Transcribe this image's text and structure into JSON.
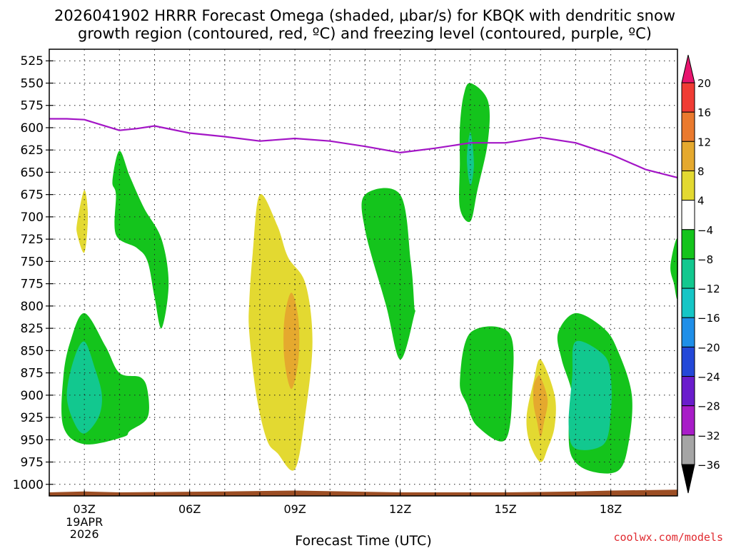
{
  "chart_data": {
    "type": "time-height cross section (filled contour)",
    "title_line1": "2026041902 HRRR Forecast Omega (shaded, μbar/s) for KBQK with dendritic snow",
    "title_line2": "growth region (contoured, red, ºC) and freezing level (contoured, purple, ºC)",
    "xlabel": "Forecast Time (UTC)",
    "credit": "coolwx.com/models",
    "x_ticks": [
      {
        "hour": 3,
        "label": "03Z",
        "sub1": "19APR",
        "sub2": "2026"
      },
      {
        "hour": 6,
        "label": "06Z"
      },
      {
        "hour": 9,
        "label": "09Z"
      },
      {
        "hour": 12,
        "label": "12Z"
      },
      {
        "hour": 15,
        "label": "15Z"
      },
      {
        "hour": 18,
        "label": "18Z"
      }
    ],
    "x_range_hours": [
      2,
      19.9
    ],
    "y_ticks": [
      525,
      550,
      575,
      600,
      625,
      650,
      675,
      700,
      725,
      750,
      775,
      800,
      825,
      850,
      875,
      900,
      925,
      950,
      975,
      1000
    ],
    "y_range_mb": [
      512,
      1013
    ],
    "colorbar": {
      "labels": [
        "20",
        "16",
        "12",
        "8",
        "4",
        "−4",
        "−8",
        "−12",
        "−16",
        "−20",
        "−24",
        "−28",
        "−32",
        "−36"
      ],
      "bins": [
        {
          "from": 20,
          "to": 24,
          "color": "#e8156e"
        },
        {
          "from": 16,
          "to": 20,
          "color": "#f03c34"
        },
        {
          "from": 12,
          "to": 16,
          "color": "#ea7a2e"
        },
        {
          "from": 8,
          "to": 12,
          "color": "#e5a92e"
        },
        {
          "from": 4,
          "to": 8,
          "color": "#e3d931"
        },
        {
          "from": -4,
          "to": 4,
          "color": "#ffffff"
        },
        {
          "from": -8,
          "to": -4,
          "color": "#14c41c"
        },
        {
          "from": -12,
          "to": -8,
          "color": "#12c88f"
        },
        {
          "from": -16,
          "to": -12,
          "color": "#15c6c6"
        },
        {
          "from": -20,
          "to": -16,
          "color": "#1f8fe8"
        },
        {
          "from": -24,
          "to": -20,
          "color": "#2448d8"
        },
        {
          "from": -28,
          "to": -24,
          "color": "#6a1ccc"
        },
        {
          "from": -32,
          "to": -28,
          "color": "#a81cc8"
        },
        {
          "from": -36,
          "to": -32,
          "color": "#a5a5a5"
        },
        {
          "from": -40,
          "to": -36,
          "color": "#000000"
        }
      ]
    },
    "freezing_level": {
      "label": "Freezing level (0 ºC)",
      "color": "#a315c6",
      "hours": [
        2.0,
        2.5,
        3.0,
        3.5,
        4.0,
        4.5,
        5.0,
        5.5,
        6.0,
        7.0,
        8.0,
        9.0,
        10.0,
        11.0,
        12.0,
        13.0,
        14.0,
        15.0,
        16.0,
        17.0,
        18.0,
        19.0,
        19.9
      ],
      "mb": [
        590,
        590,
        591,
        597,
        603,
        601,
        598,
        602,
        606,
        610,
        615,
        612,
        615,
        621,
        628,
        623,
        617,
        617,
        611,
        617,
        630,
        647,
        656
      ]
    },
    "shaded_regions": [
      {
        "name": "ascent-0330z-upper",
        "value_bin": -6,
        "hours": [
          4.0,
          4.3,
          4.7,
          5.2,
          5.4,
          5.2,
          5.0,
          4.8,
          4.5,
          3.9,
          3.9,
          3.8
        ],
        "mb": [
          626,
          655,
          690,
          725,
          775,
          825,
          790,
          750,
          735,
          720,
          675,
          660
        ]
      },
      {
        "name": "ascent-03z-low",
        "value_bin": -6,
        "hours": [
          3.0,
          3.6,
          4.0,
          4.6,
          4.8,
          4.8,
          4.3,
          4.1,
          3.0,
          2.4,
          2.4,
          2.6
        ],
        "mb": [
          808,
          845,
          875,
          880,
          895,
          925,
          940,
          947,
          955,
          935,
          880,
          840
        ]
      },
      {
        "name": "ascent-03z-core",
        "value_bin": -10,
        "hours": [
          3.0,
          3.3,
          3.5,
          3.4,
          3.0,
          2.7,
          2.5,
          2.7
        ],
        "mb": [
          840,
          870,
          900,
          925,
          943,
          930,
          900,
          860
        ]
      },
      {
        "name": "descent-03z-small",
        "value_bin": 6,
        "hours": [
          3.0,
          3.1,
          3.0,
          2.8,
          2.8
        ],
        "mb": [
          670,
          700,
          740,
          720,
          705
        ]
      },
      {
        "name": "descent-09z",
        "value_bin": 6,
        "hours": [
          8.0,
          8.5,
          8.8,
          9.3,
          9.5,
          9.3,
          9.0,
          8.5,
          8.2,
          7.9,
          7.7,
          7.7,
          7.8
        ],
        "mb": [
          675,
          710,
          745,
          775,
          840,
          920,
          983,
          965,
          950,
          900,
          830,
          795,
          740
        ]
      },
      {
        "name": "descent-09z-core",
        "value_bin": 10,
        "hours": [
          8.9,
          9.1,
          9.1,
          8.9,
          8.7,
          8.7
        ],
        "mb": [
          785,
          815,
          860,
          893,
          860,
          815
        ]
      },
      {
        "name": "ascent-12z",
        "value_bin": -6,
        "hours": [
          11.0,
          12.0,
          12.3,
          12.4,
          12.4,
          12.0,
          11.6,
          11.0
        ],
        "mb": [
          675,
          675,
          750,
          800,
          810,
          860,
          800,
          715
        ]
      },
      {
        "name": "ascent-14z-upper",
        "value_bin": -6,
        "hours": [
          14.0,
          14.5,
          14.5,
          14.2,
          14.0,
          13.7,
          13.7,
          13.7,
          13.8
        ],
        "mb": [
          550,
          570,
          615,
          670,
          705,
          690,
          640,
          600,
          565
        ]
      },
      {
        "name": "ascent-14z-core",
        "value_bin": -10,
        "hours": [
          14.0,
          14.1,
          14.0,
          13.9
        ],
        "mb": [
          605,
          640,
          665,
          635
        ]
      },
      {
        "name": "ascent-1430z-low",
        "value_bin": -6,
        "hours": [
          14.0,
          15.1,
          15.2,
          15.0,
          14.2,
          13.9,
          13.7
        ],
        "mb": [
          830,
          830,
          890,
          950,
          935,
          910,
          885
        ]
      },
      {
        "name": "descent-16z",
        "value_bin": 6,
        "hours": [
          16.0,
          16.4,
          16.4,
          16.2,
          16.0,
          15.7,
          15.6,
          15.8
        ],
        "mb": [
          860,
          900,
          935,
          960,
          975,
          955,
          925,
          885
        ]
      },
      {
        "name": "descent-16z-core",
        "value_bin": 10,
        "hours": [
          16.0,
          16.2,
          16.1,
          16.0,
          15.9,
          15.8,
          15.8,
          15.9
        ],
        "mb": [
          880,
          905,
          930,
          947,
          930,
          910,
          890,
          880
        ]
      },
      {
        "name": "ascent-18z",
        "value_bin": -6,
        "hours": [
          17.0,
          17.8,
          18.2,
          18.6,
          18.5,
          18.2,
          17.4,
          16.9,
          16.8,
          16.9,
          16.6,
          16.5
        ],
        "mb": [
          808,
          825,
          850,
          900,
          955,
          985,
          985,
          970,
          940,
          900,
          860,
          830
        ]
      },
      {
        "name": "ascent-18z-core",
        "value_bin": -10,
        "hours": [
          17.0,
          17.8,
          18.0,
          18.0,
          17.8,
          17.0,
          16.8,
          16.9
        ],
        "mb": [
          840,
          855,
          880,
          920,
          955,
          960,
          935,
          880
        ]
      },
      {
        "name": "ascent-20z-edge",
        "value_bin": -6,
        "hours": [
          19.9,
          19.9,
          19.8,
          19.7
        ],
        "mb": [
          725,
          790,
          775,
          755
        ]
      }
    ],
    "terrain": {
      "label": "surface",
      "color": "#9c4e24",
      "hours": [
        2.0,
        3.0,
        4.0,
        7.0,
        9.0,
        12.0,
        15.0,
        17.0,
        18.0,
        19.9
      ],
      "mb": [
        1009,
        1008,
        1009,
        1008,
        1007,
        1009,
        1009,
        1008,
        1007,
        1006
      ]
    }
  }
}
